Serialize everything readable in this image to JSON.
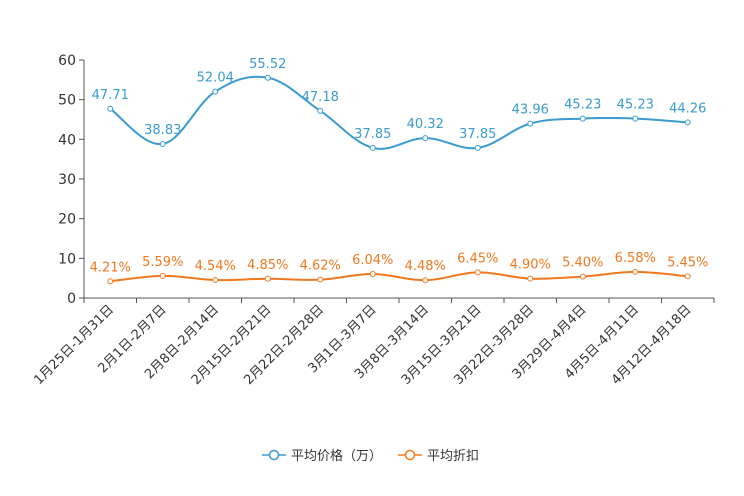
{
  "chart_data": {
    "type": "line",
    "categories": [
      "1月25日-1月31日",
      "2月1日-2月7日",
      "2月8日-2月14日",
      "2月15日-2月21日",
      "2月22日-2月28日",
      "3月1日-3月7日",
      "3月8日-3月14日",
      "3月15日-3月21日",
      "3月22日-3月28日",
      "3月29日-4月4日",
      "4月5日-4月11日",
      "4月12日-4月18日"
    ],
    "ylim": [
      0,
      60
    ],
    "yticks": [
      "0",
      "10",
      "20",
      "30",
      "40",
      "50",
      "60"
    ],
    "series": [
      {
        "name": "平均价格（万）",
        "color": "#3a9bd0",
        "values": [
          47.71,
          38.83,
          52.04,
          55.52,
          47.18,
          37.85,
          40.32,
          37.85,
          43.96,
          45.23,
          45.23,
          44.26
        ],
        "labels": [
          "47.71",
          "38.83",
          "52.04",
          "55.52",
          "47.18",
          "37.85",
          "40.32",
          "37.85",
          "43.96",
          "45.23",
          "45.23",
          "44.26"
        ]
      },
      {
        "name": "平均折扣",
        "color": "#f07820",
        "values": [
          4.21,
          5.59,
          4.54,
          4.85,
          4.62,
          6.04,
          4.48,
          6.45,
          4.9,
          5.4,
          6.58,
          5.45
        ],
        "labels": [
          "4.21%",
          "5.59%",
          "4.54%",
          "4.85%",
          "4.62%",
          "6.04%",
          "4.48%",
          "6.45%",
          "4.90%",
          "5.40%",
          "6.58%",
          "5.45%"
        ]
      }
    ],
    "legend": {
      "position": "bottom-center"
    }
  }
}
